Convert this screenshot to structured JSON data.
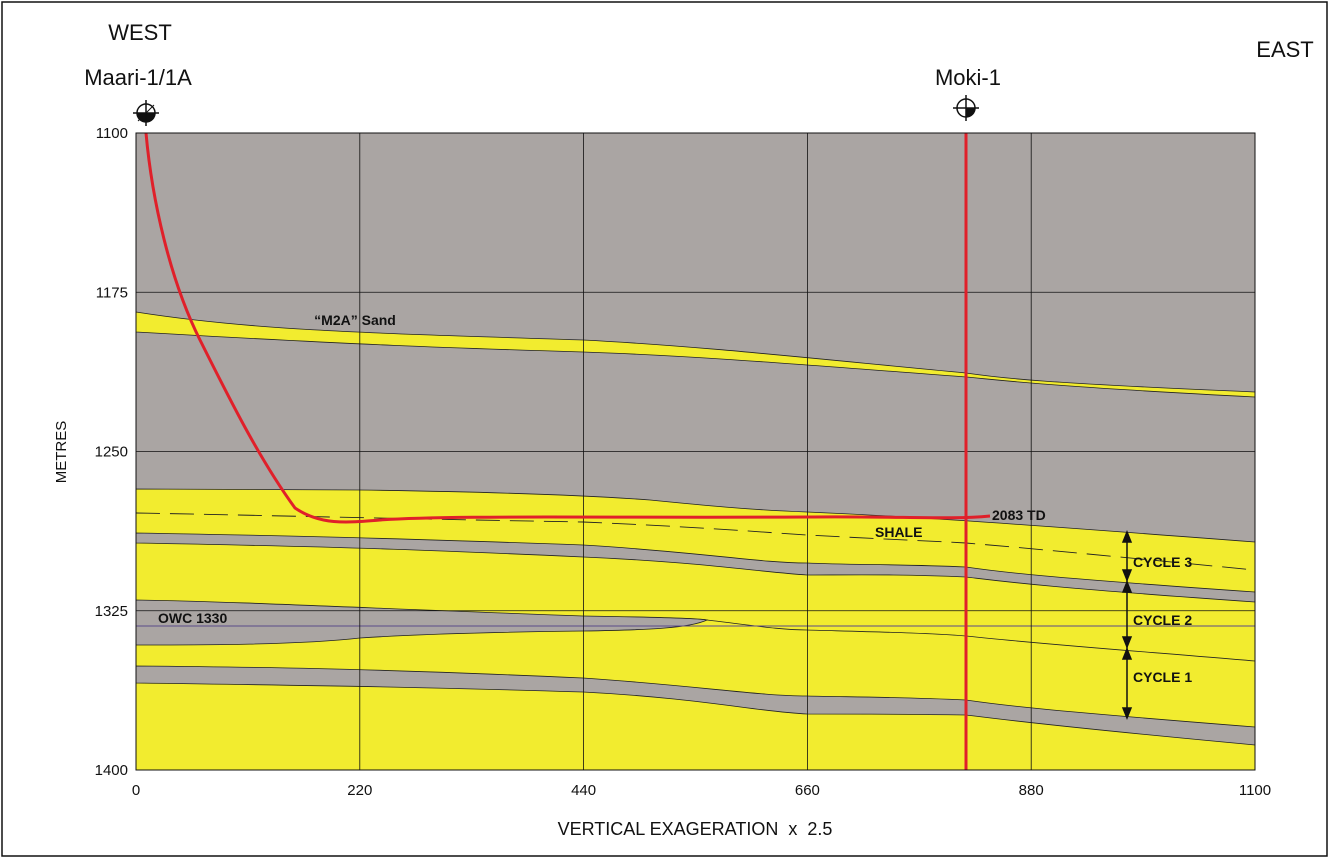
{
  "header": {
    "west": "WEST",
    "east": "EAST"
  },
  "wells": [
    {
      "name": "Maari-1/1A"
    },
    {
      "name": "Moki-1"
    }
  ],
  "axes": {
    "x": {
      "label": "VERTICAL EXAGERATION  x  2.5",
      "lim": [
        0,
        1100
      ],
      "ticks": [
        0,
        220,
        440,
        660,
        880,
        1100
      ]
    },
    "y": {
      "label": "METRES",
      "lim": [
        1100,
        1400
      ],
      "ticks": [
        1100,
        1175,
        1250,
        1325,
        1400
      ]
    }
  },
  "annotations": {
    "sand": "“M2A” Sand",
    "owc": "OWC 1330",
    "shale": "SHALE",
    "td": "2083 TD",
    "cycles": [
      "CYCLE 3",
      "CYCLE 2",
      "CYCLE 1"
    ]
  }
}
